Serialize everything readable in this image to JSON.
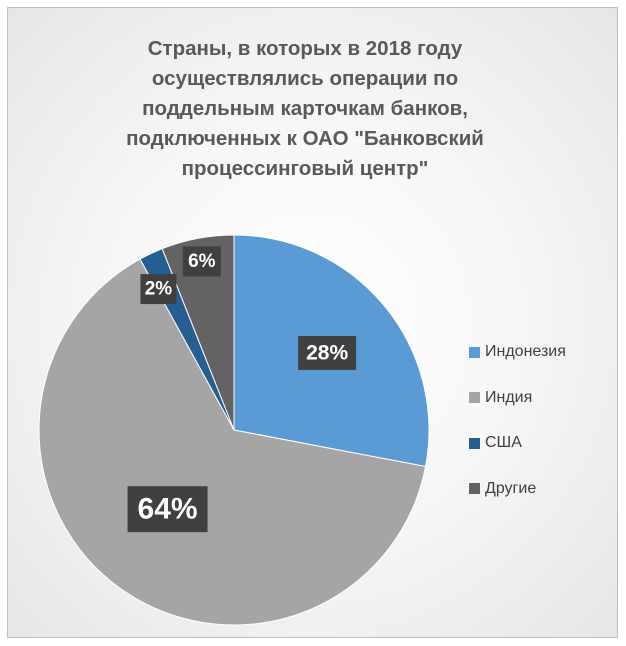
{
  "chart_data": {
    "type": "pie",
    "title": "Страны, в которых в 2018 году осуществлялись операции по поддельным карточкам банков, подключенных к ОАО \"Банковский процессинговый центр\"",
    "title_lines": [
      "Страны, в которых в 2018 году",
      "осуществлялись операции по",
      "поддельным карточкам банков,",
      "подключенных к ОАО \"Банковский",
      "процессинговый центр\""
    ],
    "categories": [
      "Индонезия",
      "Индия",
      "США",
      "Другие"
    ],
    "values": [
      28,
      64,
      2,
      6
    ],
    "data_labels": [
      "28%",
      "64%",
      "2%",
      "6%"
    ],
    "colors": [
      "#5b9bd5",
      "#a5a5a5",
      "#255e91",
      "#636363"
    ],
    "legend_position": "right",
    "start_angle": "12 o'clock",
    "direction": "clockwise"
  }
}
